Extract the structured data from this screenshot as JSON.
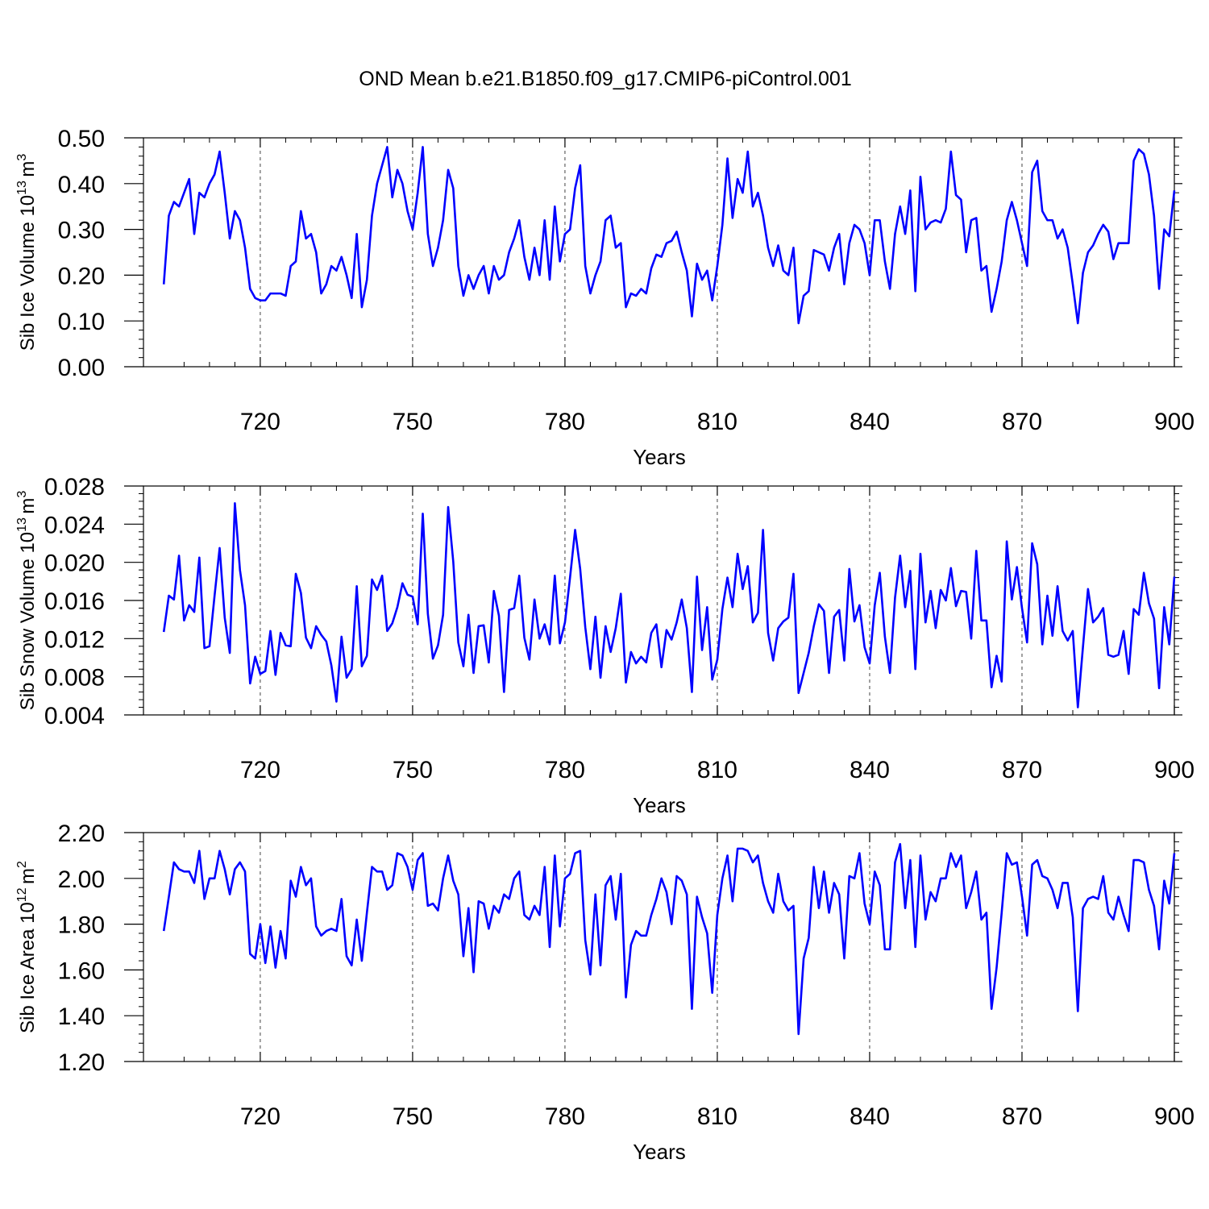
{
  "figure": {
    "title": "OND Mean b.e21.B1850.f09_g17.CMIP6-piControl.001"
  },
  "chart_data": [
    {
      "type": "line",
      "title": "",
      "xlabel": "Years",
      "ylabel": "Sib Ice Volume 10",
      "ylabel_exp": "13",
      "ylabel_unit": "m",
      "ylabel_unit_exp": "3",
      "xlim": [
        701,
        900
      ],
      "ylim": [
        0.0,
        0.5
      ],
      "xticks": [
        720,
        750,
        780,
        810,
        840,
        870,
        900
      ],
      "xtick_labels": [
        "720",
        "750",
        "780",
        "810",
        "840",
        "870",
        "900"
      ],
      "yticks": [
        0.0,
        0.1,
        0.2,
        0.3,
        0.4,
        0.5
      ],
      "ytick_labels": [
        "0.00",
        "0.10",
        "0.20",
        "0.30",
        "0.40",
        "0.50"
      ],
      "grid": "vertical dashed lines at x major ticks",
      "line_color": "#0000ff",
      "series": [
        {
          "x_start": 701,
          "x_step": 1,
          "values": [
            0.18,
            0.33,
            0.36,
            0.35,
            0.38,
            0.41,
            0.29,
            0.38,
            0.37,
            0.4,
            0.42,
            0.47,
            0.38,
            0.28,
            0.34,
            0.32,
            0.26,
            0.17,
            0.15,
            0.145,
            0.145,
            0.16,
            0.16,
            0.16,
            0.155,
            0.22,
            0.23,
            0.34,
            0.28,
            0.29,
            0.25,
            0.16,
            0.18,
            0.22,
            0.21,
            0.24,
            0.2,
            0.15,
            0.29,
            0.13,
            0.19,
            0.33,
            0.4,
            0.44,
            0.48,
            0.37,
            0.43,
            0.4,
            0.34,
            0.3,
            0.38,
            0.48,
            0.29,
            0.22,
            0.26,
            0.32,
            0.43,
            0.39,
            0.22,
            0.155,
            0.2,
            0.17,
            0.2,
            0.22,
            0.16,
            0.22,
            0.19,
            0.2,
            0.25,
            0.28,
            0.32,
            0.24,
            0.19,
            0.26,
            0.2,
            0.32,
            0.19,
            0.35,
            0.23,
            0.29,
            0.3,
            0.39,
            0.44,
            0.22,
            0.16,
            0.2,
            0.23,
            0.32,
            0.33,
            0.26,
            0.27,
            0.13,
            0.16,
            0.155,
            0.17,
            0.16,
            0.215,
            0.245,
            0.24,
            0.27,
            0.275,
            0.295,
            0.25,
            0.21,
            0.11,
            0.225,
            0.19,
            0.21,
            0.145,
            0.22,
            0.31,
            0.455,
            0.325,
            0.41,
            0.38,
            0.47,
            0.35,
            0.38,
            0.33,
            0.26,
            0.22,
            0.265,
            0.21,
            0.2,
            0.26,
            0.095,
            0.155,
            0.165,
            0.255,
            0.25,
            0.245,
            0.21,
            0.26,
            0.29,
            0.18,
            0.27,
            0.31,
            0.3,
            0.27,
            0.2,
            0.32,
            0.32,
            0.23,
            0.17,
            0.29,
            0.35,
            0.29,
            0.385,
            0.165,
            0.415,
            0.3,
            0.315,
            0.32,
            0.315,
            0.345,
            0.47,
            0.375,
            0.365,
            0.25,
            0.32,
            0.325,
            0.21,
            0.22,
            0.12,
            0.17,
            0.23,
            0.32,
            0.36,
            0.32,
            0.27,
            0.22,
            0.425,
            0.45,
            0.34,
            0.32,
            0.32,
            0.28,
            0.3,
            0.26,
            0.18,
            0.095,
            0.205,
            0.25,
            0.265,
            0.29,
            0.31,
            0.295,
            0.235,
            0.27,
            0.27,
            0.27,
            0.45,
            0.475,
            0.465,
            0.42,
            0.33,
            0.17,
            0.3,
            0.285,
            0.385
          ]
        }
      ]
    },
    {
      "type": "line",
      "title": "",
      "xlabel": "Years",
      "ylabel": "Sib Snow Volume 10",
      "ylabel_exp": "13",
      "ylabel_unit": "m",
      "ylabel_unit_exp": "3",
      "xlim": [
        701,
        900
      ],
      "ylim": [
        0.004,
        0.028
      ],
      "xticks": [
        720,
        750,
        780,
        810,
        840,
        870,
        900
      ],
      "xtick_labels": [
        "720",
        "750",
        "780",
        "810",
        "840",
        "870",
        "900"
      ],
      "yticks": [
        0.004,
        0.008,
        0.012,
        0.016,
        0.02,
        0.024,
        0.028
      ],
      "ytick_labels": [
        "0.004",
        "0.008",
        "0.012",
        "0.016",
        "0.020",
        "0.024",
        "0.028"
      ],
      "grid": "vertical dashed lines at x major ticks",
      "line_color": "#0000ff",
      "series": [
        {
          "x_start": 701,
          "x_step": 1,
          "values": [
            0.0127,
            0.0165,
            0.0161,
            0.0207,
            0.0139,
            0.0155,
            0.0148,
            0.0205,
            0.011,
            0.0112,
            0.0165,
            0.0215,
            0.0142,
            0.0105,
            0.0262,
            0.0192,
            0.0155,
            0.0073,
            0.0101,
            0.0083,
            0.0086,
            0.0128,
            0.0082,
            0.0126,
            0.0113,
            0.0112,
            0.0188,
            0.0168,
            0.0121,
            0.011,
            0.0133,
            0.0124,
            0.0117,
            0.0092,
            0.0054,
            0.0122,
            0.0079,
            0.0088,
            0.0175,
            0.0091,
            0.0102,
            0.0182,
            0.0171,
            0.0186,
            0.0128,
            0.0136,
            0.0153,
            0.0178,
            0.0166,
            0.0164,
            0.0135,
            0.0251,
            0.0146,
            0.0099,
            0.0113,
            0.0145,
            0.0258,
            0.0201,
            0.0116,
            0.0091,
            0.0145,
            0.0084,
            0.0133,
            0.0134,
            0.0095,
            0.017,
            0.0144,
            0.0064,
            0.015,
            0.0152,
            0.0186,
            0.0121,
            0.0098,
            0.0161,
            0.012,
            0.0135,
            0.0114,
            0.0186,
            0.0115,
            0.0137,
            0.0184,
            0.0234,
            0.0193,
            0.0132,
            0.0088,
            0.0143,
            0.0079,
            0.0133,
            0.0106,
            0.0131,
            0.0167,
            0.0074,
            0.0106,
            0.0094,
            0.0101,
            0.0095,
            0.0126,
            0.0135,
            0.009,
            0.0129,
            0.0119,
            0.0137,
            0.0161,
            0.0131,
            0.0064,
            0.0185,
            0.0108,
            0.0153,
            0.0077,
            0.0098,
            0.0151,
            0.0184,
            0.0153,
            0.0209,
            0.0172,
            0.0196,
            0.0137,
            0.0147,
            0.0234,
            0.0126,
            0.0097,
            0.0131,
            0.0138,
            0.0142,
            0.0188,
            0.0063,
            0.0084,
            0.0105,
            0.0133,
            0.0156,
            0.0149,
            0.0084,
            0.0143,
            0.015,
            0.0097,
            0.0193,
            0.0138,
            0.0155,
            0.0111,
            0.0094,
            0.0155,
            0.0189,
            0.0122,
            0.0084,
            0.0163,
            0.0207,
            0.0153,
            0.0191,
            0.0088,
            0.0209,
            0.0137,
            0.017,
            0.0131,
            0.0171,
            0.016,
            0.0194,
            0.0154,
            0.017,
            0.0169,
            0.012,
            0.0212,
            0.0139,
            0.0139,
            0.0069,
            0.0102,
            0.0075,
            0.0222,
            0.0161,
            0.0195,
            0.0152,
            0.0116,
            0.022,
            0.0198,
            0.0114,
            0.0165,
            0.0123,
            0.0175,
            0.0128,
            0.0118,
            0.0128,
            0.0048,
            0.0111,
            0.0172,
            0.0137,
            0.0143,
            0.0152,
            0.0103,
            0.0101,
            0.0103,
            0.0128,
            0.0083,
            0.0151,
            0.0145,
            0.0189,
            0.0157,
            0.0141,
            0.0068,
            0.0153,
            0.0114,
            0.0185
          ]
        }
      ]
    },
    {
      "type": "line",
      "title": "",
      "xlabel": "Years",
      "ylabel": "Sib Ice Area 10",
      "ylabel_exp": "12",
      "ylabel_unit": "m",
      "ylabel_unit_exp": "2",
      "xlim": [
        701,
        900
      ],
      "ylim": [
        1.2,
        2.2
      ],
      "xticks": [
        720,
        750,
        780,
        810,
        840,
        870,
        900
      ],
      "xtick_labels": [
        "720",
        "750",
        "780",
        "810",
        "840",
        "870",
        "900"
      ],
      "yticks": [
        1.2,
        1.4,
        1.6,
        1.8,
        2.0,
        2.2
      ],
      "ytick_labels": [
        "1.20",
        "1.40",
        "1.60",
        "1.80",
        "2.00",
        "2.20"
      ],
      "grid": "vertical dashed lines at x major ticks",
      "line_color": "#0000ff",
      "series": [
        {
          "x_start": 701,
          "x_step": 1,
          "values": [
            1.77,
            1.92,
            2.07,
            2.04,
            2.03,
            2.03,
            1.98,
            2.12,
            1.91,
            2.0,
            2.0,
            2.12,
            2.04,
            1.93,
            2.04,
            2.07,
            2.03,
            1.67,
            1.65,
            1.8,
            1.63,
            1.79,
            1.61,
            1.77,
            1.65,
            1.99,
            1.92,
            2.05,
            1.97,
            2.0,
            1.79,
            1.75,
            1.77,
            1.78,
            1.77,
            1.91,
            1.66,
            1.62,
            1.82,
            1.64,
            1.85,
            2.05,
            2.03,
            2.03,
            1.95,
            1.97,
            2.11,
            2.1,
            2.05,
            1.95,
            2.08,
            2.11,
            1.88,
            1.89,
            1.86,
            2.0,
            2.1,
            1.99,
            1.93,
            1.66,
            1.87,
            1.59,
            1.9,
            1.89,
            1.78,
            1.88,
            1.85,
            1.93,
            1.91,
            2.0,
            2.03,
            1.84,
            1.82,
            1.88,
            1.84,
            2.05,
            1.7,
            2.1,
            1.79,
            2.0,
            2.02,
            2.11,
            2.12,
            1.73,
            1.58,
            1.93,
            1.62,
            1.97,
            2.01,
            1.82,
            2.02,
            1.48,
            1.71,
            1.77,
            1.75,
            1.75,
            1.84,
            1.91,
            2.0,
            1.94,
            1.8,
            2.01,
            1.99,
            1.93,
            1.43,
            1.92,
            1.83,
            1.76,
            1.5,
            1.84,
            2.0,
            2.1,
            1.9,
            2.13,
            2.13,
            2.12,
            2.07,
            2.1,
            1.98,
            1.9,
            1.85,
            2.02,
            1.9,
            1.86,
            1.88,
            1.32,
            1.65,
            1.74,
            2.05,
            1.87,
            2.03,
            1.85,
            1.98,
            1.93,
            1.65,
            2.01,
            2.0,
            2.11,
            1.89,
            1.8,
            2.03,
            1.97,
            1.69,
            1.69,
            2.07,
            2.15,
            1.87,
            2.08,
            1.7,
            2.1,
            1.82,
            1.94,
            1.9,
            2.0,
            2.0,
            2.11,
            2.05,
            2.1,
            1.87,
            1.94,
            2.03,
            1.82,
            1.85,
            1.43,
            1.61,
            1.85,
            2.11,
            2.06,
            2.07,
            1.92,
            1.75,
            2.06,
            2.08,
            2.01,
            2.0,
            1.95,
            1.87,
            1.98,
            1.98,
            1.83,
            1.42,
            1.87,
            1.91,
            1.92,
            1.91,
            2.01,
            1.85,
            1.82,
            1.92,
            1.84,
            1.77,
            2.08,
            2.08,
            2.07,
            1.95,
            1.88,
            1.69,
            1.99,
            1.89,
            2.11
          ]
        }
      ]
    }
  ]
}
